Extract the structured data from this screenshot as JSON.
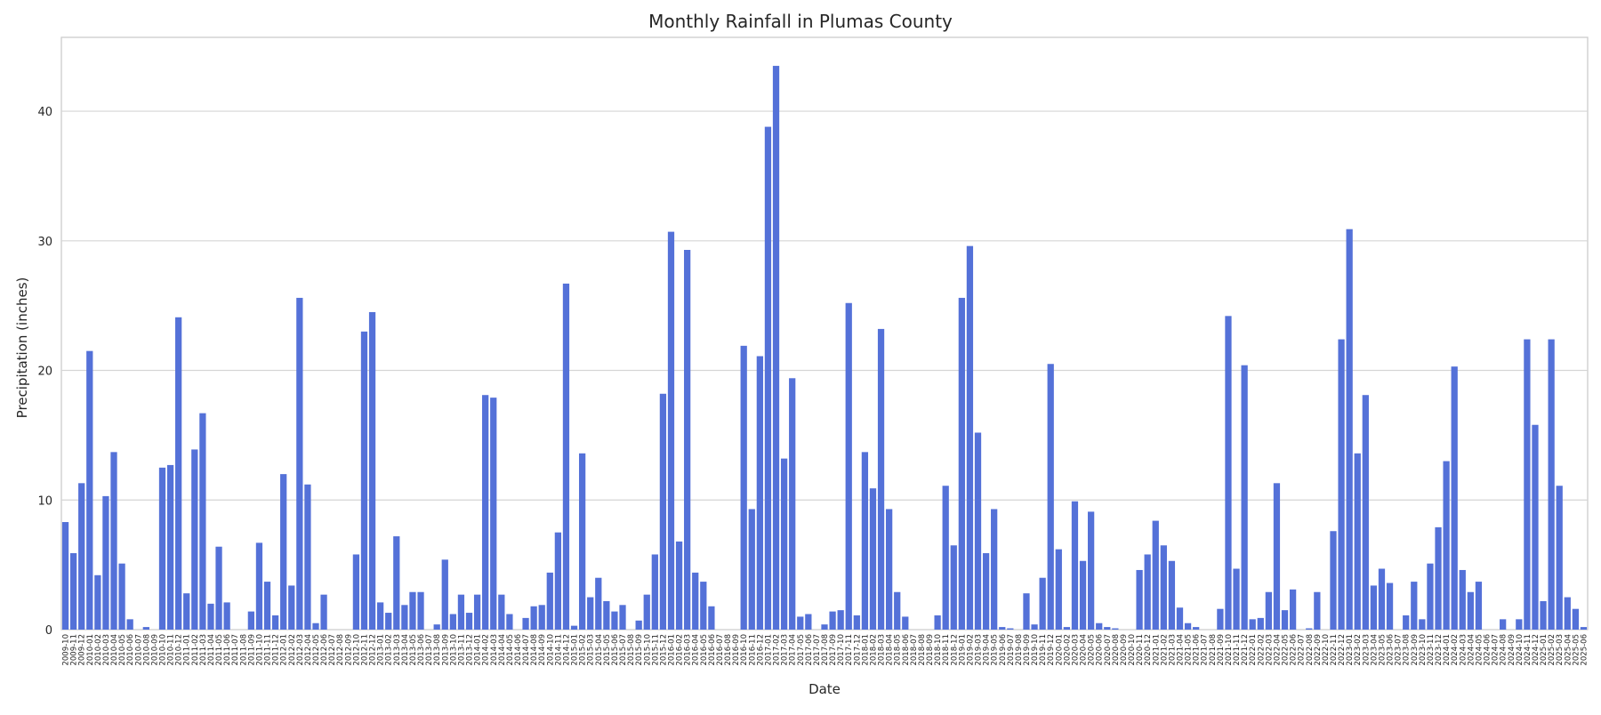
{
  "chart_data": {
    "type": "bar",
    "title": "Monthly Rainfall in Plumas County",
    "xlabel": "Date",
    "ylabel": "Precipitation (inches)",
    "ylim": [
      0,
      45.7
    ],
    "yticks": [
      0,
      10,
      20,
      30,
      40
    ],
    "grid": true,
    "bar_color": "#5471d8",
    "categories": [
      "2009-10",
      "2009-11",
      "2009-12",
      "2010-01",
      "2010-02",
      "2010-03",
      "2010-04",
      "2010-05",
      "2010-06",
      "2010-07",
      "2010-08",
      "2010-09",
      "2010-10",
      "2010-11",
      "2010-12",
      "2011-01",
      "2011-02",
      "2011-03",
      "2011-04",
      "2011-05",
      "2011-06",
      "2011-07",
      "2011-08",
      "2011-09",
      "2011-10",
      "2011-11",
      "2011-12",
      "2012-01",
      "2012-02",
      "2012-03",
      "2012-04",
      "2012-05",
      "2012-06",
      "2012-07",
      "2012-08",
      "2012-09",
      "2012-10",
      "2012-11",
      "2012-12",
      "2013-01",
      "2013-02",
      "2013-03",
      "2013-04",
      "2013-05",
      "2013-06",
      "2013-07",
      "2013-08",
      "2013-09",
      "2013-10",
      "2013-11",
      "2013-12",
      "2014-01",
      "2014-02",
      "2014-03",
      "2014-04",
      "2014-05",
      "2014-06",
      "2014-07",
      "2014-08",
      "2014-09",
      "2014-10",
      "2014-11",
      "2014-12",
      "2015-01",
      "2015-02",
      "2015-03",
      "2015-04",
      "2015-05",
      "2015-06",
      "2015-07",
      "2015-08",
      "2015-09",
      "2015-10",
      "2015-11",
      "2015-12",
      "2016-01",
      "2016-02",
      "2016-03",
      "2016-04",
      "2016-05",
      "2016-06",
      "2016-07",
      "2016-08",
      "2016-09",
      "2016-10",
      "2016-11",
      "2016-12",
      "2017-01",
      "2017-02",
      "2017-03",
      "2017-04",
      "2017-05",
      "2017-06",
      "2017-07",
      "2017-08",
      "2017-09",
      "2017-10",
      "2017-11",
      "2017-12",
      "2018-01",
      "2018-02",
      "2018-03",
      "2018-04",
      "2018-05",
      "2018-06",
      "2018-07",
      "2018-08",
      "2018-09",
      "2018-10",
      "2018-11",
      "2018-12",
      "2019-01",
      "2019-02",
      "2019-03",
      "2019-04",
      "2019-05",
      "2019-06",
      "2019-07",
      "2019-08",
      "2019-09",
      "2019-10",
      "2019-11",
      "2019-12",
      "2020-01",
      "2020-02",
      "2020-03",
      "2020-04",
      "2020-05",
      "2020-06",
      "2020-07",
      "2020-08",
      "2020-09",
      "2020-10",
      "2020-11",
      "2020-12",
      "2021-01",
      "2021-02",
      "2021-03",
      "2021-04",
      "2021-05",
      "2021-06",
      "2021-07",
      "2021-08",
      "2021-09",
      "2021-10",
      "2021-11",
      "2021-12",
      "2022-01",
      "2022-02",
      "2022-03",
      "2022-04",
      "2022-05",
      "2022-06",
      "2022-07",
      "2022-08",
      "2022-09",
      "2022-10",
      "2022-11",
      "2022-12",
      "2023-01",
      "2023-02",
      "2023-03",
      "2023-04",
      "2023-05",
      "2023-06",
      "2023-07",
      "2023-08",
      "2023-09",
      "2023-10",
      "2023-11",
      "2023-12",
      "2024-01",
      "2024-02",
      "2024-03",
      "2024-04",
      "2024-05",
      "2024-06",
      "2024-07",
      "2024-08",
      "2024-09",
      "2024-10",
      "2024-11",
      "2024-12",
      "2025-01",
      "2025-02",
      "2025-03",
      "2025-04",
      "2025-05",
      "2025-06"
    ],
    "values": [
      8.3,
      5.9,
      11.3,
      21.5,
      4.2,
      10.3,
      13.7,
      5.1,
      0.8,
      0,
      0.2,
      0,
      12.5,
      12.7,
      24.1,
      2.8,
      13.9,
      16.7,
      2,
      6.4,
      2.1,
      0,
      0,
      1.4,
      6.7,
      3.7,
      1.1,
      12,
      3.4,
      25.6,
      11.2,
      0.5,
      2.7,
      0,
      0,
      0,
      5.8,
      23,
      24.5,
      2.1,
      1.3,
      7.2,
      1.9,
      2.9,
      2.9,
      0,
      0.4,
      5.4,
      1.2,
      2.7,
      1.3,
      2.7,
      18.1,
      17.9,
      2.7,
      1.2,
      0,
      0.9,
      1.8,
      1.9,
      4.4,
      7.5,
      26.7,
      0.3,
      13.6,
      2.5,
      4,
      2.2,
      1.4,
      1.9,
      0,
      0.7,
      2.7,
      5.8,
      18.2,
      30.7,
      6.8,
      29.3,
      4.4,
      3.7,
      1.8,
      0,
      0,
      0,
      21.9,
      9.3,
      21.1,
      38.8,
      43.5,
      13.2,
      19.4,
      1,
      1.2,
      0,
      0.4,
      1.4,
      1.5,
      25.2,
      1.1,
      13.7,
      10.9,
      23.2,
      9.3,
      2.9,
      1,
      0,
      0,
      0,
      1.1,
      11.1,
      6.5,
      25.6,
      29.6,
      15.2,
      5.9,
      9.3,
      0.2,
      0.1,
      0,
      2.8,
      0.4,
      4,
      20.5,
      6.2,
      0.2,
      9.9,
      5.3,
      9.1,
      0.5,
      0.2,
      0.1,
      0,
      0,
      4.6,
      5.8,
      8.4,
      6.5,
      5.3,
      1.7,
      0.5,
      0.2,
      0,
      0,
      1.6,
      24.2,
      4.7,
      20.4,
      0.8,
      0.9,
      2.9,
      11.3,
      1.5,
      3.1,
      0,
      0.1,
      2.9,
      0,
      7.6,
      22.4,
      30.9,
      13.6,
      18.1,
      3.4,
      4.7,
      3.6,
      0,
      1.1,
      3.7,
      0.8,
      5.1,
      7.9,
      13,
      20.3,
      4.6,
      2.9,
      3.7,
      0,
      0,
      0.8,
      0,
      0.8,
      22.4,
      15.8,
      2.2,
      22.4,
      11.1,
      2.5,
      1.6,
      0.2
    ]
  }
}
